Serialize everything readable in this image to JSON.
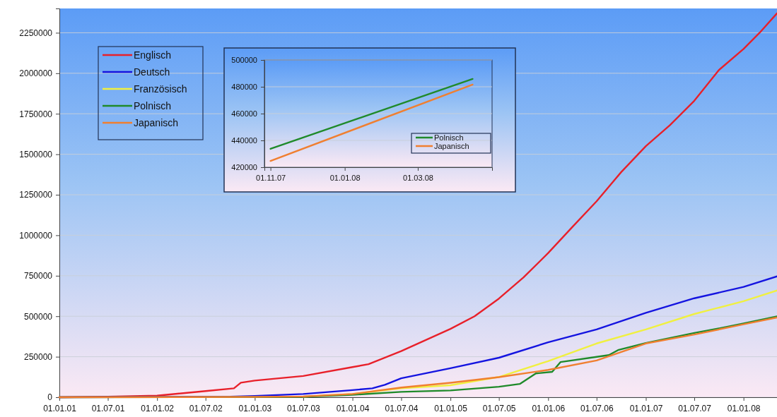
{
  "chart_data": [
    {
      "type": "line",
      "xlim": [
        "2001-01-01",
        "2008-05-05"
      ],
      "ylim": [
        0,
        2400000
      ],
      "xticks": [
        {
          "value": "2001-01-01",
          "label": "01.01.01"
        },
        {
          "value": "2001-07-01",
          "label": "01.07.01"
        },
        {
          "value": "2002-01-01",
          "label": "01.01.02"
        },
        {
          "value": "2002-07-01",
          "label": "01.07.02"
        },
        {
          "value": "2003-01-01",
          "label": "01.01.03"
        },
        {
          "value": "2003-07-01",
          "label": "01.07.03"
        },
        {
          "value": "2004-01-01",
          "label": "01.01.04"
        },
        {
          "value": "2004-07-01",
          "label": "01.07.04"
        },
        {
          "value": "2005-01-01",
          "label": "01.01.05"
        },
        {
          "value": "2005-07-01",
          "label": "01.07.05"
        },
        {
          "value": "2006-01-01",
          "label": "01.01.06"
        },
        {
          "value": "2006-07-01",
          "label": "01.07.06"
        },
        {
          "value": "2007-01-01",
          "label": "01.01.07"
        },
        {
          "value": "2007-07-01",
          "label": "01.07.07"
        },
        {
          "value": "2008-01-01",
          "label": "01.01.08"
        }
      ],
      "yticks": [
        0,
        250000,
        500000,
        750000,
        1000000,
        1250000,
        1500000,
        1750000,
        2000000,
        2250000
      ],
      "grid": "y",
      "legend": "top left",
      "marker": "none",
      "line_style": "solid",
      "series": [
        {
          "name": "Englisch",
          "color": "#e8202a",
          "x": [
            "2001-01-01",
            "2001-07-01",
            "2002-01-01",
            "2002-07-01",
            "2002-10-15",
            "2002-11-10",
            "2003-01-01",
            "2003-07-01",
            "2004-01-01",
            "2004-03-01",
            "2004-07-01",
            "2005-01-01",
            "2005-04-01",
            "2005-07-01",
            "2005-10-01",
            "2006-01-01",
            "2006-04-01",
            "2006-07-01",
            "2006-10-01",
            "2007-01-01",
            "2007-04-01",
            "2007-07-01",
            "2007-10-01",
            "2008-01-01",
            "2008-03-01",
            "2008-05-05"
          ],
          "values": [
            0,
            3000,
            10000,
            38000,
            55000,
            90000,
            103000,
            131000,
            186000,
            204000,
            285000,
            422000,
            500000,
            609000,
            740000,
            890000,
            1050000,
            1210000,
            1390000,
            1550000,
            1680000,
            1830000,
            2020000,
            2150000,
            2250000,
            2370000
          ]
        },
        {
          "name": "Deutsch",
          "color": "#1414e0",
          "x": [
            "2001-01-01",
            "2002-10-01",
            "2003-01-01",
            "2003-07-01",
            "2004-01-01",
            "2004-03-15",
            "2004-05-01",
            "2004-07-01",
            "2005-01-01",
            "2005-07-01",
            "2006-01-01",
            "2006-07-01",
            "2007-01-01",
            "2007-07-01",
            "2008-01-01",
            "2008-05-05"
          ],
          "values": [
            0,
            3000,
            8000,
            20000,
            44000,
            55000,
            77000,
            117000,
            179000,
            244000,
            339000,
            419000,
            521000,
            611000,
            681000,
            746000
          ]
        },
        {
          "name": "Französisch",
          "color": "#f0f040",
          "x": [
            "2003-07-01",
            "2004-01-01",
            "2004-07-01",
            "2005-01-01",
            "2005-07-01",
            "2006-01-01",
            "2006-07-01",
            "2007-01-01",
            "2007-07-01",
            "2008-01-01",
            "2008-05-05"
          ],
          "values": [
            3000,
            20000,
            55000,
            74000,
            125000,
            223000,
            332000,
            419000,
            514000,
            593000,
            659000
          ]
        },
        {
          "name": "Polnisch",
          "color": "#1f8a2a",
          "x": [
            "2001-01-01",
            "2003-01-01",
            "2003-07-01",
            "2004-01-01",
            "2004-07-01",
            "2005-01-01",
            "2005-07-01",
            "2005-09-17",
            "2005-11-16",
            "2006-01-16",
            "2006-02-16",
            "2006-08-16",
            "2006-09-19",
            "2007-01-01",
            "2007-07-01",
            "2007-10-05",
            "2008-01-01",
            "2008-05-05"
          ],
          "values": [
            0,
            1000,
            3000,
            15000,
            33000,
            42000,
            65000,
            82000,
            147000,
            157000,
            217000,
            260000,
            291000,
            335000,
            397000,
            426000,
            455000,
            499000
          ]
        },
        {
          "name": "Japanisch",
          "color": "#f07f30",
          "x": [
            "2001-01-01",
            "2003-01-01",
            "2003-07-01",
            "2004-01-01",
            "2004-07-01",
            "2005-01-01",
            "2005-07-01",
            "2006-01-01",
            "2006-07-01",
            "2007-01-01",
            "2007-07-01",
            "2008-01-01",
            "2008-05-05"
          ],
          "values": [
            0,
            2000,
            5000,
            20000,
            60000,
            89000,
            124000,
            169000,
            227000,
            332000,
            387000,
            450000,
            492000
          ]
        }
      ]
    },
    {
      "type": "line",
      "xlim": [
        "2007-10-27",
        "2008-05-01"
      ],
      "ylim": [
        420000,
        500000
      ],
      "xticks": [
        {
          "value": "2007-11-01",
          "label": "01.11.07"
        },
        {
          "value": "2008-01-01",
          "label": "01.01.08"
        },
        {
          "value": "2008-03-01",
          "label": "01.03.08"
        }
      ],
      "yticks": [
        420000,
        440000,
        460000,
        480000,
        500000
      ],
      "grid": "y",
      "legend": "bottom right",
      "marker": "none",
      "line_style": "solid",
      "series": [
        {
          "name": "Polnisch",
          "color": "#1f8a2a",
          "x": [
            "2007-11-01",
            "2008-04-15"
          ],
          "values": [
            433700,
            485800
          ]
        },
        {
          "name": "Japanisch",
          "color": "#f07f30",
          "x": [
            "2007-11-01",
            "2008-04-15"
          ],
          "values": [
            424700,
            481600
          ]
        }
      ]
    }
  ]
}
